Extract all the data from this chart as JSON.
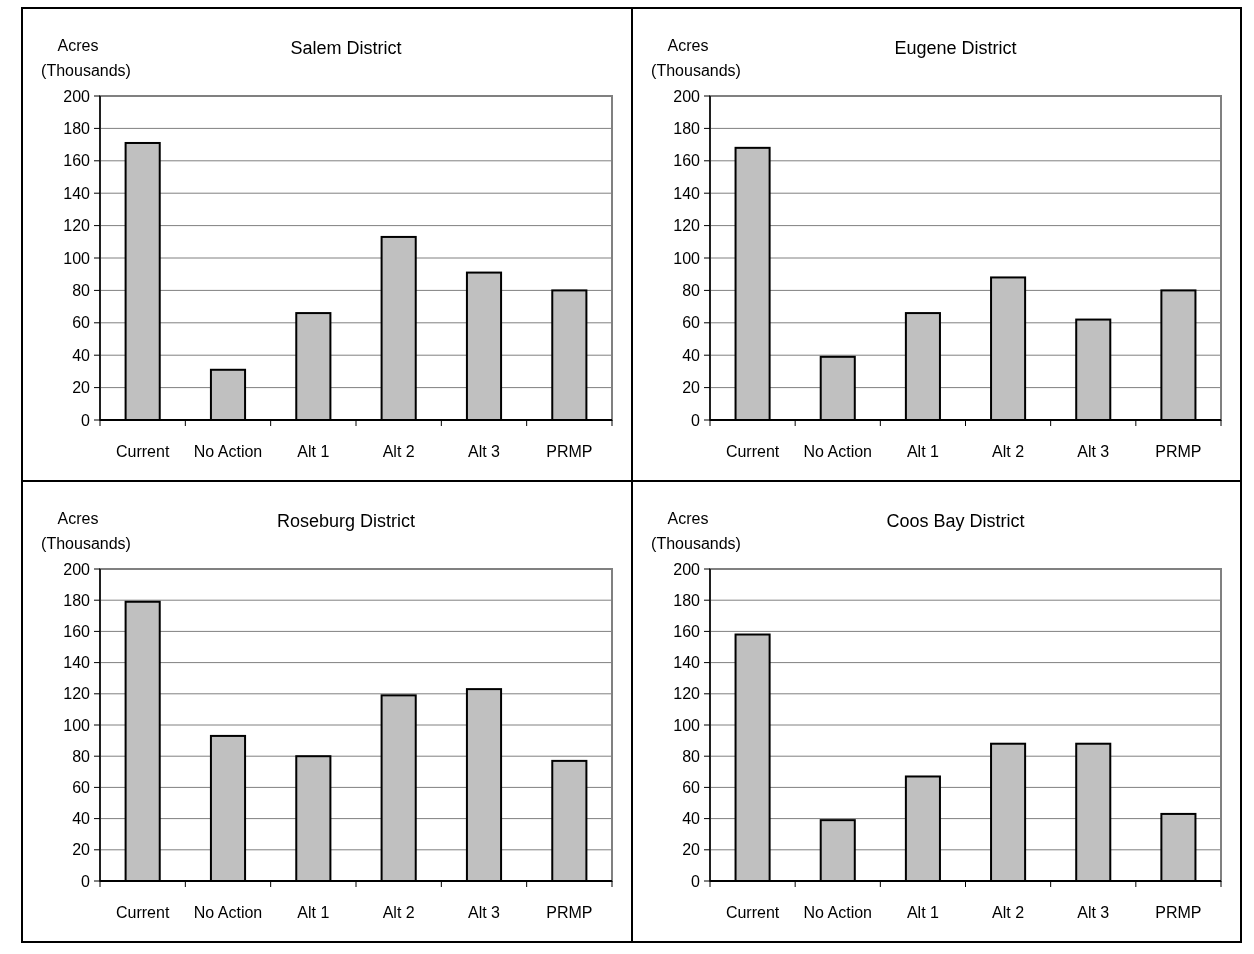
{
  "chart_data": [
    {
      "type": "bar",
      "title": "Salem District",
      "ylabel": "Acres (Thousands)",
      "categories": [
        "Current",
        "No Action",
        "Alt 1",
        "Alt 2",
        "Alt 3",
        "PRMP"
      ],
      "values": [
        171,
        31,
        66,
        113,
        91,
        80
      ],
      "color": "#c0c0c0",
      "ylim": [
        0,
        200
      ],
      "yticks": [
        0,
        20,
        40,
        60,
        80,
        100,
        120,
        140,
        160,
        180,
        200
      ],
      "grid": "y"
    },
    {
      "type": "bar",
      "title": "Eugene District",
      "ylabel": "Acres (Thousands)",
      "categories": [
        "Current",
        "No Action",
        "Alt 1",
        "Alt 2",
        "Alt 3",
        "PRMP"
      ],
      "values": [
        168,
        39,
        66,
        88,
        62,
        80
      ],
      "color": "#c0c0c0",
      "ylim": [
        0,
        200
      ],
      "yticks": [
        0,
        20,
        40,
        60,
        80,
        100,
        120,
        140,
        160,
        180,
        200
      ],
      "grid": "y"
    },
    {
      "type": "bar",
      "title": "Roseburg District",
      "ylabel": "Acres (Thousands)",
      "categories": [
        "Current",
        "No Action",
        "Alt 1",
        "Alt 2",
        "Alt 3",
        "PRMP"
      ],
      "values": [
        179,
        93,
        80,
        119,
        123,
        77
      ],
      "color": "#c0c0c0",
      "ylim": [
        0,
        200
      ],
      "yticks": [
        0,
        20,
        40,
        60,
        80,
        100,
        120,
        140,
        160,
        180,
        200
      ],
      "grid": "y"
    },
    {
      "type": "bar",
      "title": "Coos Bay District",
      "ylabel": "Acres (Thousands)",
      "categories": [
        "Current",
        "No Action",
        "Alt 1",
        "Alt 2",
        "Alt 3",
        "PRMP"
      ],
      "values": [
        158,
        39,
        67,
        88,
        88,
        43
      ],
      "color": "#c0c0c0",
      "ylim": [
        0,
        200
      ],
      "yticks": [
        0,
        20,
        40,
        60,
        80,
        100,
        120,
        140,
        160,
        180,
        200
      ],
      "grid": "y"
    }
  ]
}
